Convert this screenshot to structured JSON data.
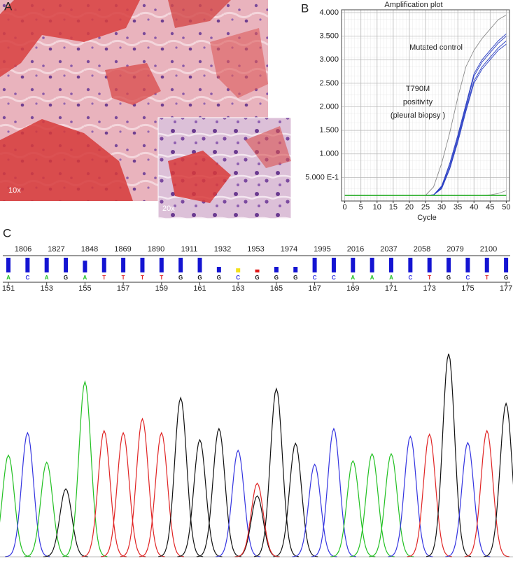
{
  "panel_a": {
    "label": "A",
    "magnifications": [
      "10x",
      "20x"
    ]
  },
  "chart_data": [
    {
      "panel": "B",
      "type": "line",
      "title": "Amplification plot",
      "xlabel": "Cycle",
      "x": [
        0,
        2.5,
        5,
        7.5,
        10,
        12.5,
        15,
        17.5,
        20,
        22.5,
        25,
        27.5,
        30,
        32.5,
        35,
        37.5,
        40,
        42.5,
        45,
        47.5,
        50
      ],
      "series": [
        {
          "name": "Mutated control",
          "color": "#8a8a8a",
          "values": [
            0.12,
            0.12,
            0.12,
            0.12,
            0.12,
            0.12,
            0.12,
            0.12,
            0.12,
            0.12,
            0.12,
            0.3,
            0.8,
            1.45,
            2.2,
            2.85,
            3.2,
            3.45,
            3.65,
            3.85,
            3.95
          ]
        },
        {
          "color": "#2b3fc4",
          "values": [
            0.12,
            0.12,
            0.12,
            0.12,
            0.12,
            0.12,
            0.12,
            0.12,
            0.12,
            0.12,
            0.12,
            0.13,
            0.3,
            0.75,
            1.35,
            2.0,
            2.65,
            2.95,
            3.15,
            3.35,
            3.5
          ]
        },
        {
          "color": "#2b3fc4",
          "values": [
            0.12,
            0.12,
            0.12,
            0.12,
            0.12,
            0.12,
            0.12,
            0.12,
            0.12,
            0.12,
            0.12,
            0.13,
            0.28,
            0.7,
            1.3,
            1.95,
            2.55,
            2.85,
            3.05,
            3.25,
            3.4
          ]
        },
        {
          "color": "#2b3fc4",
          "values": [
            0.12,
            0.12,
            0.12,
            0.12,
            0.12,
            0.12,
            0.12,
            0.12,
            0.12,
            0.12,
            0.12,
            0.13,
            0.32,
            0.8,
            1.4,
            2.05,
            2.7,
            3.0,
            3.2,
            3.4,
            3.55
          ]
        },
        {
          "color": "#2b3fc4",
          "values": [
            0.12,
            0.12,
            0.12,
            0.12,
            0.12,
            0.12,
            0.12,
            0.12,
            0.12,
            0.12,
            0.12,
            0.13,
            0.26,
            0.68,
            1.25,
            1.9,
            2.5,
            2.8,
            3.0,
            3.2,
            3.33
          ]
        },
        {
          "color": "#9a9a9a",
          "values": [
            0.12,
            0.12,
            0.12,
            0.12,
            0.12,
            0.12,
            0.12,
            0.12,
            0.12,
            0.12,
            0.12,
            0.12,
            0.12,
            0.12,
            0.12,
            0.12,
            0.12,
            0.12,
            0.13,
            0.16,
            0.22
          ]
        },
        {
          "color": "#1ca81c",
          "values": [
            0.12,
            0.12,
            0.12,
            0.12,
            0.12,
            0.12,
            0.12,
            0.12,
            0.12,
            0.12,
            0.12,
            0.12,
            0.12,
            0.12,
            0.12,
            0.12,
            0.12,
            0.12,
            0.12,
            0.12,
            0.12
          ]
        }
      ],
      "annotation": [
        "T790M",
        "positivity",
        "(pleural biopsy )"
      ],
      "xlim": [
        -1,
        51
      ],
      "ylim": [
        0,
        4.06
      ],
      "xticks": [
        0,
        5,
        10,
        15,
        20,
        25,
        30,
        35,
        40,
        45,
        50
      ],
      "yticks": [
        {
          "value": 0.5,
          "label": "5.000 E-1"
        },
        {
          "value": 1.0,
          "label": "1.000"
        },
        {
          "value": 1.5,
          "label": "1.500"
        },
        {
          "value": 2.0,
          "label": "2.000"
        },
        {
          "value": 2.5,
          "label": "2.500"
        },
        {
          "value": 3.0,
          "label": "3.000"
        },
        {
          "value": 3.5,
          "label": "3.500"
        },
        {
          "value": 4.0,
          "label": "4.000"
        }
      ],
      "grid": true
    },
    {
      "panel": "C",
      "type": "chromatogram",
      "positions": [
        1806,
        1827,
        1848,
        1869,
        1890,
        1911,
        1932,
        1953,
        1974,
        1995,
        2016,
        2037,
        2058,
        2079,
        2100
      ],
      "bases": [
        "A",
        "C",
        "A",
        "G",
        "A",
        "T",
        "T",
        "T",
        "T",
        "G",
        "G",
        "G",
        "C",
        "G",
        "G",
        "G",
        "C",
        "C",
        "A",
        "A",
        "A",
        "C",
        "T",
        "G",
        "C",
        "T",
        "G"
      ],
      "base_numbers": [
        151,
        153,
        155,
        157,
        159,
        161,
        163,
        165,
        167,
        169,
        171,
        173,
        175,
        177
      ],
      "quality": [
        50,
        50,
        50,
        50,
        40,
        50,
        50,
        50,
        50,
        50,
        50,
        19,
        14,
        10,
        19,
        19,
        50,
        50,
        50,
        50,
        50,
        50,
        50,
        50,
        50,
        50,
        50
      ],
      "quality_colors": [
        "#1414d2",
        "#1414d2",
        "#1414d2",
        "#1414d2",
        "#1414d2",
        "#1414d2",
        "#1414d2",
        "#1414d2",
        "#1414d2",
        "#1414d2",
        "#1414d2",
        "#1414d2",
        "#f2e01a",
        "#e01818",
        "#1414d2",
        "#1414d2",
        "#1414d2",
        "#1414d2",
        "#1414d2",
        "#1414d2",
        "#1414d2",
        "#1414d2",
        "#1414d2",
        "#1414d2",
        "#1414d2",
        "#1414d2",
        "#1414d2"
      ],
      "qlim": [
        0,
        50
      ],
      "base_colors": {
        "A": "#22c022",
        "C": "#3434e0",
        "G": "#111111",
        "T": "#e02424"
      },
      "peaks": [
        145,
        177,
        135,
        97,
        250,
        180,
        177,
        197,
        177,
        227,
        167,
        183,
        152,
        87,
        240,
        162,
        132,
        183,
        137,
        147,
        147,
        172,
        175,
        290,
        163,
        180,
        219
      ],
      "secondary_peaks": [
        {
          "base": "T",
          "position": 13,
          "height": 105
        }
      ],
      "ylim": [
        0,
        300
      ]
    }
  ]
}
